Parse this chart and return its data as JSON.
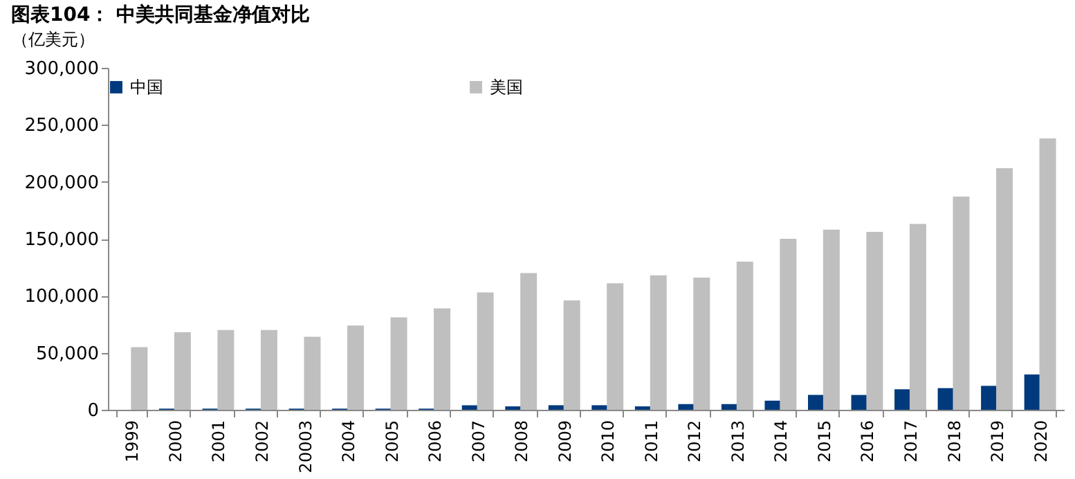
{
  "chart_data": {
    "type": "bar",
    "title": "图表104：  中美共同基金净值对比",
    "ylabel": "（亿美元）",
    "categories": [
      "1999",
      "2000",
      "2001",
      "2002",
      "20003",
      "2004",
      "2005",
      "2006",
      "2007",
      "2008",
      "2009",
      "2010",
      "2011",
      "2012",
      "2013",
      "2014",
      "2015",
      "2016",
      "2017",
      "2018",
      "2019",
      "2020"
    ],
    "series": [
      {
        "name": "中国",
        "color": "#003a7d",
        "values": [
          0,
          1000,
          1000,
          1000,
          1000,
          1000,
          1000,
          1000,
          4000,
          3000,
          4000,
          4000,
          3000,
          5000,
          5000,
          8000,
          13000,
          13000,
          18000,
          19000,
          21000,
          31000
        ]
      },
      {
        "name": "美国",
        "color": "#bfbfbf",
        "values": [
          55000,
          68000,
          70000,
          70000,
          64000,
          74000,
          81000,
          89000,
          103000,
          120000,
          96000,
          111000,
          118000,
          116000,
          130000,
          150000,
          158000,
          156000,
          163000,
          187000,
          212000,
          238000
        ]
      }
    ],
    "ylim": [
      0,
      300000
    ],
    "yticks": [
      {
        "value": 0,
        "label": "0"
      },
      {
        "value": 50000,
        "label": "50,000"
      },
      {
        "value": 100000,
        "label": "100,000"
      },
      {
        "value": 150000,
        "label": "150,000"
      },
      {
        "value": 200000,
        "label": "200,000"
      },
      {
        "value": 250000,
        "label": "250,000"
      },
      {
        "value": 300000,
        "label": "300,000"
      }
    ],
    "grid": false,
    "legend": "top"
  }
}
